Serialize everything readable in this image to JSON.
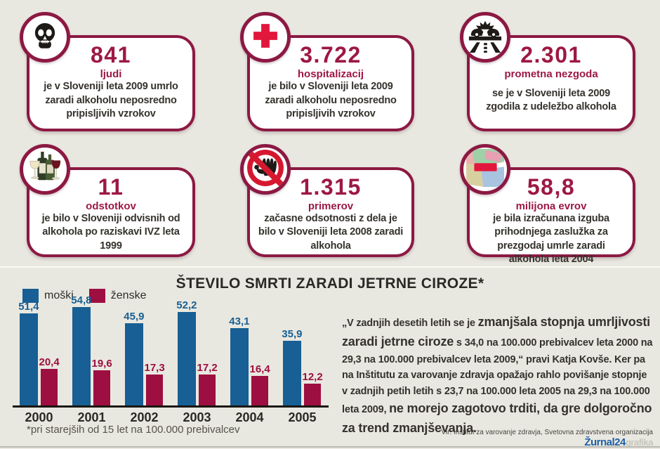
{
  "page": {
    "background": "#e9e8e0",
    "accent": "#8c1943"
  },
  "cards": [
    {
      "icon": "skull-icon",
      "number": "841",
      "unit": "ljudi",
      "description": "je v Sloveniji leta 2009 umrlo zaradi alkoholu neposredno pripisljivih vzrokov"
    },
    {
      "icon": "red-cross-icon",
      "number": "3.722",
      "unit": "hospitalizacij",
      "description": "je bilo v Sloveniji leta 2009 zaradi alkoholu neposredno pripisljivih vzrokov"
    },
    {
      "icon": "car-crash-icon",
      "number": "2.301",
      "unit": "prometna nezgoda",
      "description": "se je v Sloveniji leta 2009 zgodila z udeležbo alkohola"
    },
    {
      "icon": "wine-bottles-icon",
      "number": "11",
      "unit": "odstotkov",
      "description": "je bilo v Sloveniji odvisnih od alkohola po raziskavi IVZ leta 1999"
    },
    {
      "icon": "no-hand-icon",
      "number": "1.315",
      "unit": "primerov",
      "description": "začasne odsotnosti z dela je bilo v Sloveniji leta 2008 zaradi alkohola"
    },
    {
      "icon": "euro-banknotes-icon",
      "number": "58,8",
      "unit": "milijona evrov",
      "description": "je bila izračunana izguba prihodnjega zaslužka za prezgodaj umrle zaradi alkohola leta 2004"
    }
  ],
  "chart_data": {
    "type": "bar",
    "title": "ŠTEVILO SMRTI ZARADI JETRNE CIROZE*",
    "categories": [
      "2000",
      "2001",
      "2002",
      "2003",
      "2004",
      "2005"
    ],
    "series": [
      {
        "name": "moški",
        "color": "#175f94",
        "values": [
          51.4,
          54.8,
          45.9,
          52.2,
          43.1,
          35.9
        ]
      },
      {
        "name": "ženske",
        "color": "#9d0e41",
        "values": [
          20.4,
          19.6,
          17.3,
          17.2,
          16.4,
          12.2
        ]
      }
    ],
    "ylim": [
      0,
      60
    ],
    "grid": false,
    "legend_position": "top-left",
    "footnote": "*pri starejših od 15 let na 100.000 prebivalcev"
  },
  "quote": {
    "segments": [
      {
        "text": "„V zadnjih desetih letih se je ",
        "em": false
      },
      {
        "text": "zmanjšala stopnja umrljivosti zaradi jetrne ciroze",
        "em": true
      },
      {
        "text": " s 34,0 na 100.000 prebivalcev leta 2000 na 29,3 na 100.000 prebivalcev leta 2009,“ pravi Katja Kovše. Ker pa na Inštitutu za varovanje zdravja opažajo rahlo povišanje stopnje v zadnjih petih letih s 23,7 na 100.000 leta 2005 na 29,3 na 100.000 leta 2009, ",
        "em": false
      },
      {
        "text": "ne morejo zagotovo trditi, da gre dolgoročno za trend zmanjševanja.",
        "em": true
      }
    ]
  },
  "footer": {
    "source": "Vir: Inštitut za varovanje zdravja, Svetovna zdravstvena organizacija",
    "logo_main": "Žurnal24",
    "logo_suffix": "grafika"
  }
}
